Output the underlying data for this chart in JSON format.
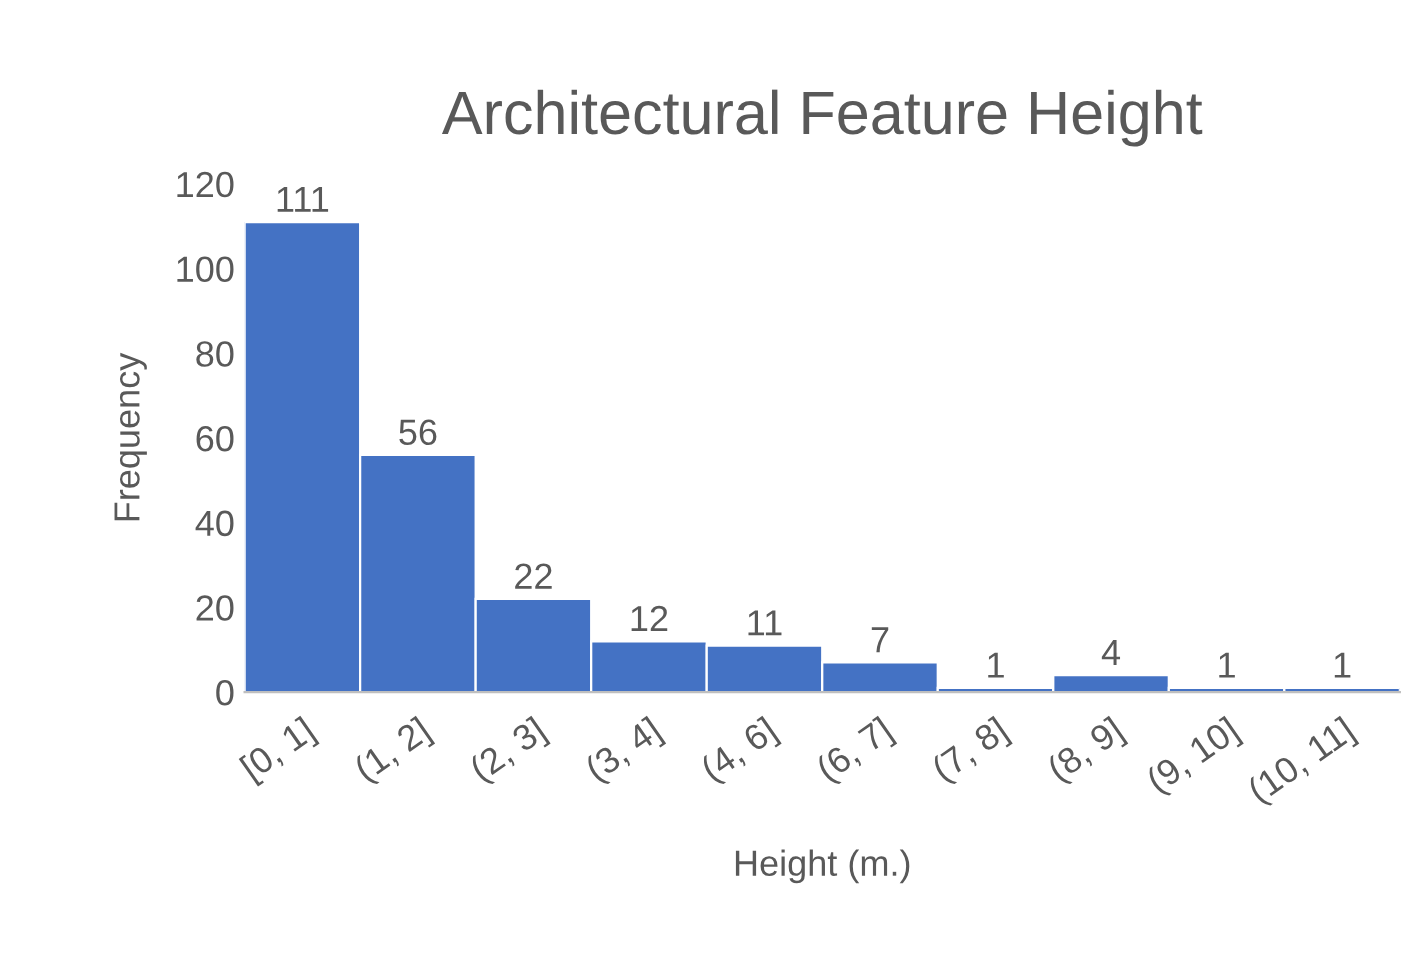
{
  "chart_data": {
    "type": "bar",
    "title": "Architectural Feature Height",
    "xlabel": "Height (m.)",
    "ylabel": "Frequency",
    "categories": [
      "[0, 1]",
      "(1, 2]",
      "(2, 3]",
      "(3, 4]",
      "(4, 6]",
      "(6, 7]",
      "(7, 8]",
      "(8, 9]",
      "(9, 10]",
      "(10, 11]"
    ],
    "values": [
      111,
      56,
      22,
      12,
      11,
      7,
      1,
      4,
      1,
      1
    ],
    "color": "#4472c4",
    "ylim": [
      0,
      120
    ],
    "yticks": [
      0,
      20,
      40,
      60,
      80,
      100,
      120
    ],
    "grid": false,
    "data_labels": true
  }
}
